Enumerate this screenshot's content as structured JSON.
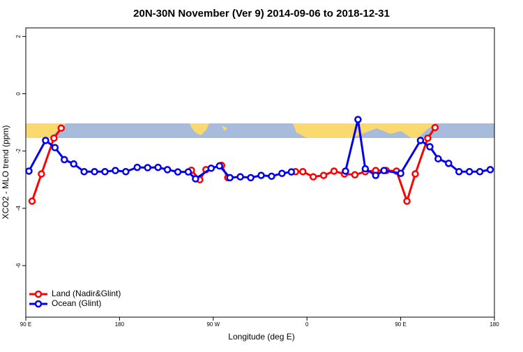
{
  "chart_data": {
    "type": "line",
    "title": "20N-30N November (Ver 9)   2014-09-06 to 2018-12-31",
    "x_label": "Longitude (deg E)",
    "y_label": "XCO2 - MLO trend (ppm)",
    "xlim": [
      90,
      540
    ],
    "xticks": [
      {
        "value": 90,
        "label": "90 E"
      },
      180,
      {
        "value": 270,
        "label": "90 W"
      },
      {
        "value": 360,
        "label": "0"
      },
      {
        "value": 450,
        "label": "90 E"
      },
      {
        "value": 540,
        "label": "180"
      }
    ],
    "ylim": [
      -7.8,
      2.3
    ],
    "yticks": [
      2,
      0,
      -2,
      -4,
      -6
    ],
    "legend": "bottomleft",
    "series": [
      {
        "name": "Land (Nadir&Glint)",
        "color": "#ff0000",
        "x": [
          96,
          105,
          117,
          124,
          200,
          249,
          257,
          263,
          278,
          284,
          320,
          349,
          356,
          366,
          376,
          386,
          396,
          406,
          416,
          426,
          436,
          446,
          456,
          464,
          476,
          483
        ],
        "values": [
          -3.75,
          -2.8,
          -1.55,
          -1.2,
          null,
          -2.67,
          -3.0,
          -2.65,
          -2.5,
          -2.93,
          null,
          -2.72,
          -2.72,
          -2.9,
          -2.85,
          -2.7,
          -2.8,
          -2.83,
          -2.72,
          -2.68,
          -2.68,
          -2.7,
          -3.75,
          -2.8,
          -1.55,
          -1.18
        ]
      },
      {
        "name": "Ocean (Glint)",
        "color": "#0000ee",
        "x": [
          93,
          109,
          118,
          127,
          136,
          146,
          156,
          166,
          176,
          186,
          197,
          207,
          217,
          226,
          236,
          246,
          253,
          268,
          276,
          286,
          296,
          306,
          316,
          326,
          336,
          345,
          370,
          397,
          409,
          416,
          426,
          434,
          450,
          469,
          478,
          486,
          496,
          506,
          516,
          526,
          536
        ],
        "values": [
          -2.7,
          -1.63,
          -1.88,
          -2.3,
          -2.45,
          -2.72,
          -2.72,
          -2.72,
          -2.68,
          -2.72,
          -2.57,
          -2.58,
          -2.57,
          -2.65,
          -2.73,
          -2.73,
          -2.97,
          -2.6,
          -2.52,
          -2.93,
          -2.9,
          -2.93,
          -2.85,
          -2.88,
          -2.78,
          -2.73,
          null,
          -2.7,
          -0.9,
          -2.62,
          -2.85,
          -2.68,
          -2.78,
          -1.63,
          -1.85,
          -2.27,
          -2.43,
          -2.72,
          -2.72,
          -2.72,
          -2.65
        ]
      }
    ]
  }
}
